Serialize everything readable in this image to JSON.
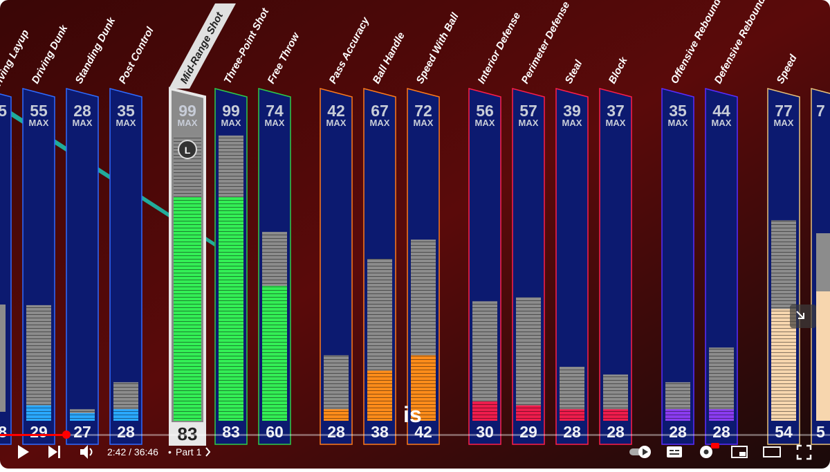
{
  "player": {
    "time": "2:42 / 36:46",
    "chapter": "Part 1",
    "subtitle": "is"
  },
  "badge": "L",
  "left_partial": {
    "name": "riving Layup",
    "max": "5",
    "current": "8"
  },
  "right_partial": {
    "max": "7",
    "current": "5"
  },
  "max_label": "MAX",
  "groups": [
    {
      "color": "#2f6bff",
      "fill": "#2aa8ff",
      "attributes": [
        {
          "name": "Driving Dunk",
          "max": 55,
          "current": 29
        },
        {
          "name": "Standing Dunk",
          "max": 28,
          "current": 27
        },
        {
          "name": "Post Control",
          "max": 35,
          "current": 28
        }
      ]
    },
    {
      "color": "#2ecc4a",
      "fill": "#33ee55",
      "attributes": [
        {
          "name": "Mid-Range Shot",
          "max": 99,
          "current": 83
        },
        {
          "name": "Three-Point Shot",
          "max": 99,
          "current": 83
        },
        {
          "name": "Free Throw",
          "max": 74,
          "current": 60
        }
      ]
    },
    {
      "color": "#ff7a1a",
      "fill": "#ff8c1a",
      "attributes": [
        {
          "name": "Pass Accuracy",
          "max": 42,
          "current": 28
        },
        {
          "name": "Ball Handle",
          "max": 67,
          "current": 38
        },
        {
          "name": "Speed With Ball",
          "max": 72,
          "current": 42
        }
      ]
    },
    {
      "color": "#ff1e4a",
      "fill": "#ee1c4c",
      "attributes": [
        {
          "name": "Interior Defense",
          "max": 56,
          "current": 30
        },
        {
          "name": "Perimeter Defense",
          "max": 57,
          "current": 29
        },
        {
          "name": "Steal",
          "max": 39,
          "current": 28
        },
        {
          "name": "Block",
          "max": 37,
          "current": 28
        }
      ]
    },
    {
      "color": "#5a2dff",
      "fill": "#8a3cf0",
      "attributes": [
        {
          "name": "Offensive Rebound",
          "max": 35,
          "current": 28
        },
        {
          "name": "Defensive Rebound",
          "max": 44,
          "current": 28
        }
      ]
    },
    {
      "color": "#e8c27a",
      "fill": "#f7d6ae",
      "attributes": [
        {
          "name": "Speed",
          "max": 77,
          "current": 54
        }
      ]
    }
  ]
}
